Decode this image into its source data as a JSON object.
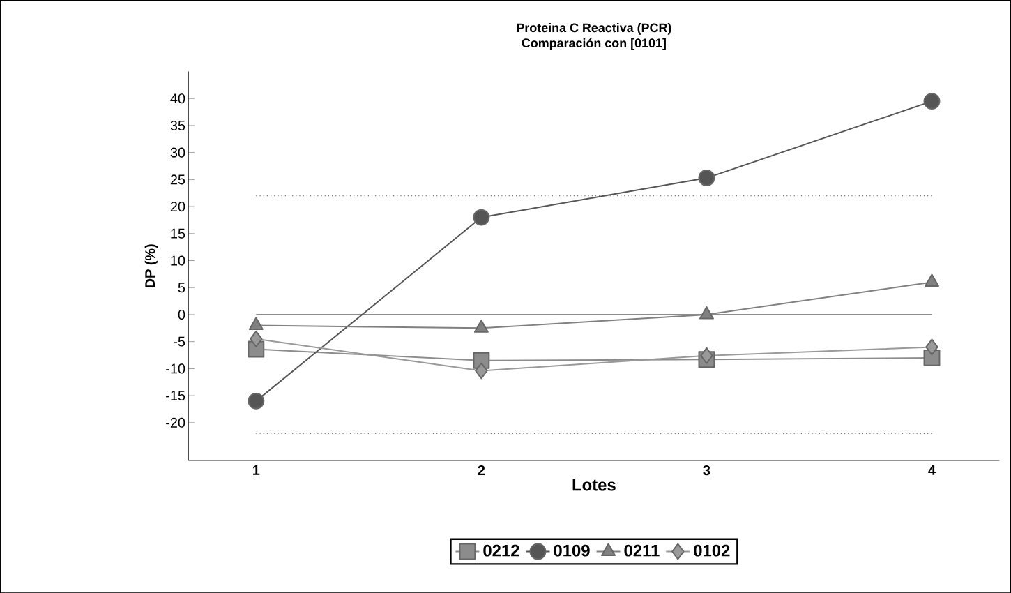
{
  "chart_data": {
    "type": "line",
    "title": "Proteina C Reactiva (PCR)",
    "subtitle": "Comparación con [0101]",
    "xlabel": "Lotes",
    "ylabel": "DP (%)",
    "x": [
      1,
      2,
      3,
      4
    ],
    "xlim": [
      0.7,
      4.3
    ],
    "xticks": [
      1,
      2,
      3,
      4
    ],
    "ylim": [
      -27,
      45
    ],
    "yticks": [
      -20,
      -15,
      -10,
      -5,
      0,
      5,
      10,
      15,
      20,
      25,
      30,
      35,
      40
    ],
    "series": [
      {
        "name": "0212",
        "color": "#8c8c8c",
        "marker": "square",
        "values": [
          -6.4,
          -8.5,
          -8.3,
          -8
        ]
      },
      {
        "name": "0109",
        "color": "#555555",
        "marker": "circle",
        "values": [
          -16,
          18,
          25.3,
          39.5
        ]
      },
      {
        "name": "0211",
        "color": "#808080",
        "marker": "triangle",
        "values": [
          -2,
          -2.5,
          0,
          6
        ]
      },
      {
        "name": "0102",
        "color": "#999999",
        "marker": "diamond",
        "values": [
          -4.5,
          -10.4,
          -7.6,
          -6
        ]
      }
    ],
    "ref_lines": [
      {
        "axis": "y",
        "value": 22,
        "line_style": "dotted",
        "color": "#777777"
      },
      {
        "axis": "y",
        "value": 0,
        "line_style": "solid",
        "color": "#666666"
      },
      {
        "axis": "y",
        "value": -22,
        "line_style": "dotted",
        "color": "#777777"
      }
    ],
    "grid": false,
    "legend": "bottom",
    "line_style": "solid"
  }
}
